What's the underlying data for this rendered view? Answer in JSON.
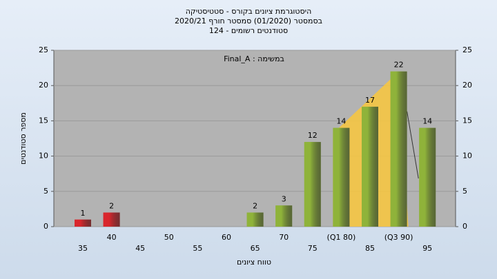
{
  "chart_data": {
    "type": "bar",
    "title": [
      "היסטוגרמת ציונים בקורס - סטטיסטיקה",
      "בסמסטר  (01/2020)  סמסטר חורף 2020/21",
      "סטודנטים רשומים - 124"
    ],
    "annotation": "במשימה : Final_A",
    "xlabel": "טווח ציונים",
    "ylabel": "מספר סטודנטים",
    "categories": [
      "35",
      "40",
      "45",
      "50",
      "55",
      "60",
      "65",
      "70",
      "75",
      "(Q1 80)",
      "85",
      "(Q3 90)",
      "95"
    ],
    "values": [
      1,
      2,
      0,
      0,
      0,
      0,
      2,
      3,
      12,
      14,
      17,
      22,
      14
    ],
    "colors": [
      "#d9262c",
      "#d9262c",
      "#8fb33a",
      "#8fb33a",
      "#8fb33a",
      "#8fb33a",
      "#8fb33a",
      "#8fb33a",
      "#8fb33a",
      "#8fb33a",
      "#8fb33a",
      "#8fb33a",
      "#8fb33a"
    ],
    "ylim": [
      0,
      25
    ],
    "yticks": [
      0,
      5,
      10,
      15,
      20,
      25
    ],
    "y2lim": [
      0,
      25
    ],
    "y2ticks": [
      0,
      5,
      10,
      15,
      20,
      25
    ],
    "grid": true
  }
}
